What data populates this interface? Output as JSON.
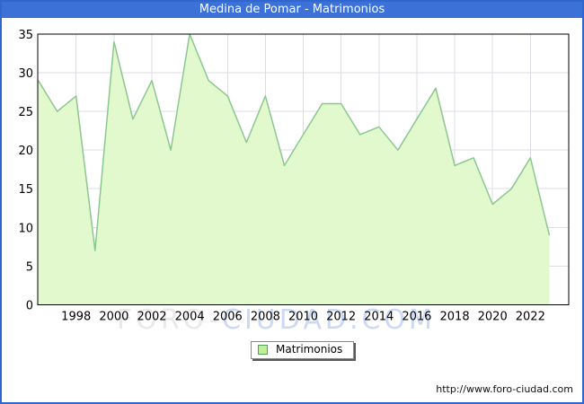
{
  "title": "Medina de Pomar - Matrimonios",
  "watermark": {
    "part1": "FORO-",
    "part2": "CIUDAD.COM"
  },
  "legend": {
    "label": "Matrimonios"
  },
  "footer": {
    "url": "http://www.foro-ciudad.com"
  },
  "colors": {
    "frame_border": "#2f66cf",
    "titlebar": "#3c71d8",
    "grid": "#dcdce6",
    "plot_border": "#000000",
    "area_fill": "#e2f8cd",
    "line": "#8cc791",
    "tick_text": "#000000",
    "legend_swatch_fill": "#bdf099",
    "legend_swatch_border": "#55a055",
    "watermark_gray": "#e9e9e9",
    "watermark_blue": "#ccd9f4"
  },
  "chart_data": {
    "type": "area",
    "title": "Medina de Pomar - Matrimonios",
    "series_name": "Matrimonios",
    "x": [
      1996,
      1997,
      1998,
      1999,
      2000,
      2001,
      2002,
      2003,
      2004,
      2005,
      2006,
      2007,
      2008,
      2009,
      2010,
      2011,
      2012,
      2013,
      2014,
      2015,
      2016,
      2017,
      2018,
      2019,
      2020,
      2021,
      2022,
      2023
    ],
    "values": [
      29,
      25,
      27,
      7,
      34,
      24,
      29,
      20,
      35,
      29,
      27,
      21,
      27,
      18,
      22,
      26,
      26,
      22,
      23,
      20,
      24,
      28,
      18,
      19,
      13,
      15,
      19,
      9
    ],
    "xlabel": "",
    "ylabel": "",
    "ylim": [
      0,
      35
    ],
    "yticks": [
      0,
      5,
      10,
      15,
      20,
      25,
      30,
      35
    ],
    "xticks": [
      1998,
      2000,
      2002,
      2004,
      2006,
      2008,
      2010,
      2012,
      2014,
      2016,
      2018,
      2020,
      2022
    ],
    "grid": true,
    "legend_position": "bottom-center"
  }
}
